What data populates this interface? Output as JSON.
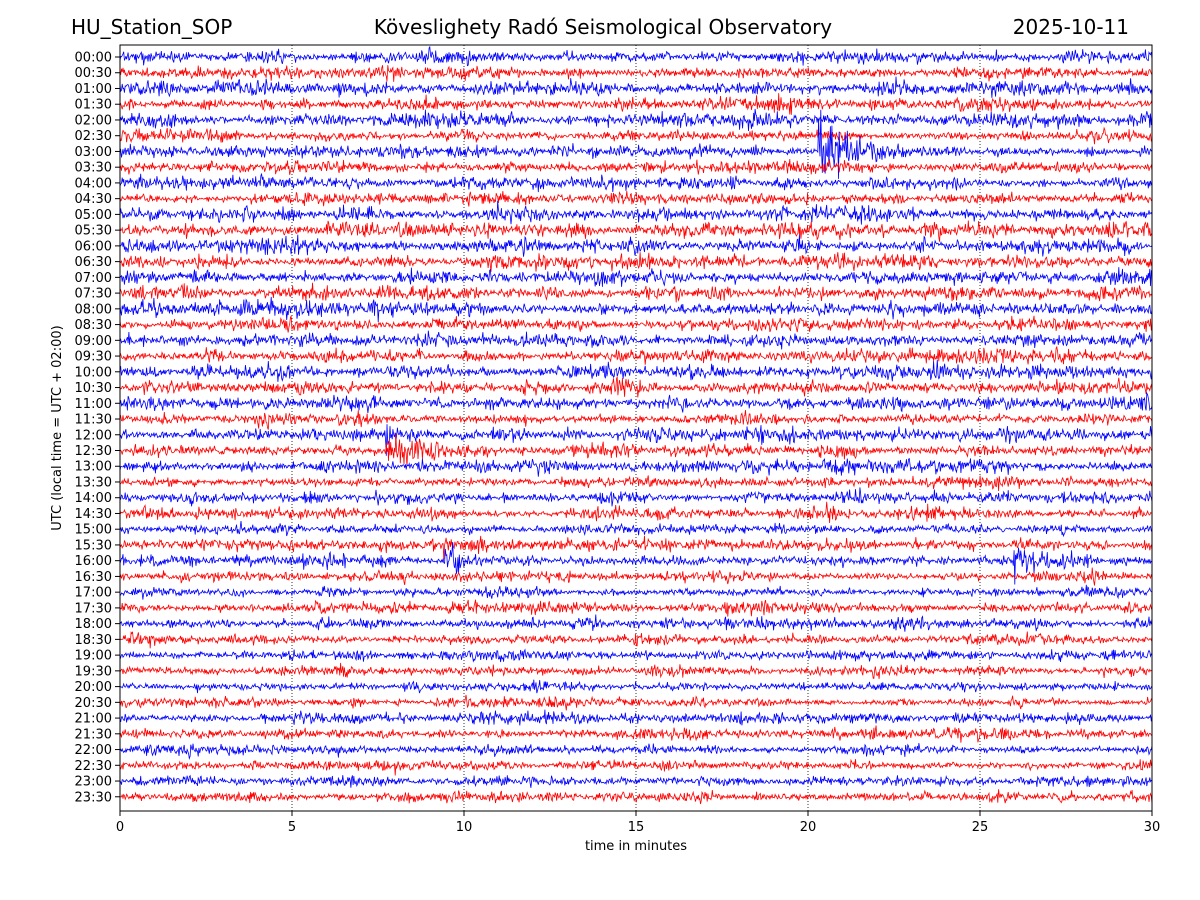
{
  "header": {
    "station": "HU_Station_SOP",
    "title": "Köveslighety Radó Seismological Observatory",
    "date": "2025-10-11"
  },
  "chart_data": {
    "type": "line",
    "subtype": "helicorder",
    "title": "Köveslighety Radó Seismological Observatory",
    "xlabel": "time in minutes",
    "ylabel": "UTC (local time = UTC + 02:00)",
    "xlim": [
      0,
      30
    ],
    "xticks": [
      "0",
      "5",
      "10",
      "15",
      "20",
      "25",
      "30"
    ],
    "grid": "vertical dotted at every 5 minutes",
    "rows": [
      "00:00",
      "00:30",
      "01:00",
      "01:30",
      "02:00",
      "02:30",
      "03:00",
      "03:30",
      "04:00",
      "04:30",
      "05:00",
      "05:30",
      "06:00",
      "06:30",
      "07:00",
      "07:30",
      "08:00",
      "08:30",
      "09:00",
      "09:30",
      "10:00",
      "10:30",
      "11:00",
      "11:30",
      "12:00",
      "12:30",
      "13:00",
      "13:30",
      "14:00",
      "14:30",
      "15:00",
      "15:30",
      "16:00",
      "16:30",
      "17:00",
      "17:30",
      "18:00",
      "18:30",
      "19:00",
      "19:30",
      "20:00",
      "20:30",
      "21:00",
      "21:30",
      "22:00",
      "22:30",
      "23:00",
      "23:30"
    ],
    "row_colors": [
      "#0000ff",
      "#ff0000"
    ],
    "noise_level": [
      1.0,
      1.0,
      1.2,
      1.1,
      1.1,
      0.9,
      1.0,
      1.0,
      1.0,
      1.0,
      1.2,
      1.2,
      1.2,
      1.1,
      1.1,
      1.1,
      1.2,
      1.0,
      1.0,
      1.1,
      1.1,
      1.1,
      1.1,
      1.0,
      1.1,
      1.0,
      1.0,
      0.9,
      1.0,
      0.9,
      0.8,
      0.9,
      0.9,
      0.8,
      0.8,
      0.9,
      0.9,
      0.9,
      0.8,
      0.8,
      0.8,
      0.7,
      0.9,
      0.9,
      0.8,
      0.8,
      0.8,
      0.8
    ],
    "events": [
      {
        "row": "03:00",
        "start_min": 20.3,
        "end_min": 22.8,
        "amplitude": 9
      },
      {
        "row": "12:00",
        "start_min": 7.7,
        "end_min": 9.6,
        "amplitude": 2.2
      },
      {
        "row": "12:30",
        "start_min": 7.7,
        "end_min": 10.2,
        "amplitude": 3.2
      },
      {
        "row": "14:00",
        "start_min": 7.4,
        "end_min": 7.8,
        "amplitude": 2.2
      },
      {
        "row": "14:30",
        "start_min": 20.4,
        "end_min": 21.3,
        "amplitude": 1.8
      },
      {
        "row": "15:30",
        "start_min": 9.4,
        "end_min": 9.7,
        "amplitude": 4
      },
      {
        "row": "16:00",
        "start_min": 9.4,
        "end_min": 12.0,
        "amplitude": 3
      },
      {
        "row": "16:00",
        "start_min": 25.95,
        "end_min": 28.6,
        "amplitude": 3
      },
      {
        "row": "18:30",
        "start_min": 0.2,
        "end_min": 0.9,
        "amplitude": 1.8
      }
    ]
  }
}
